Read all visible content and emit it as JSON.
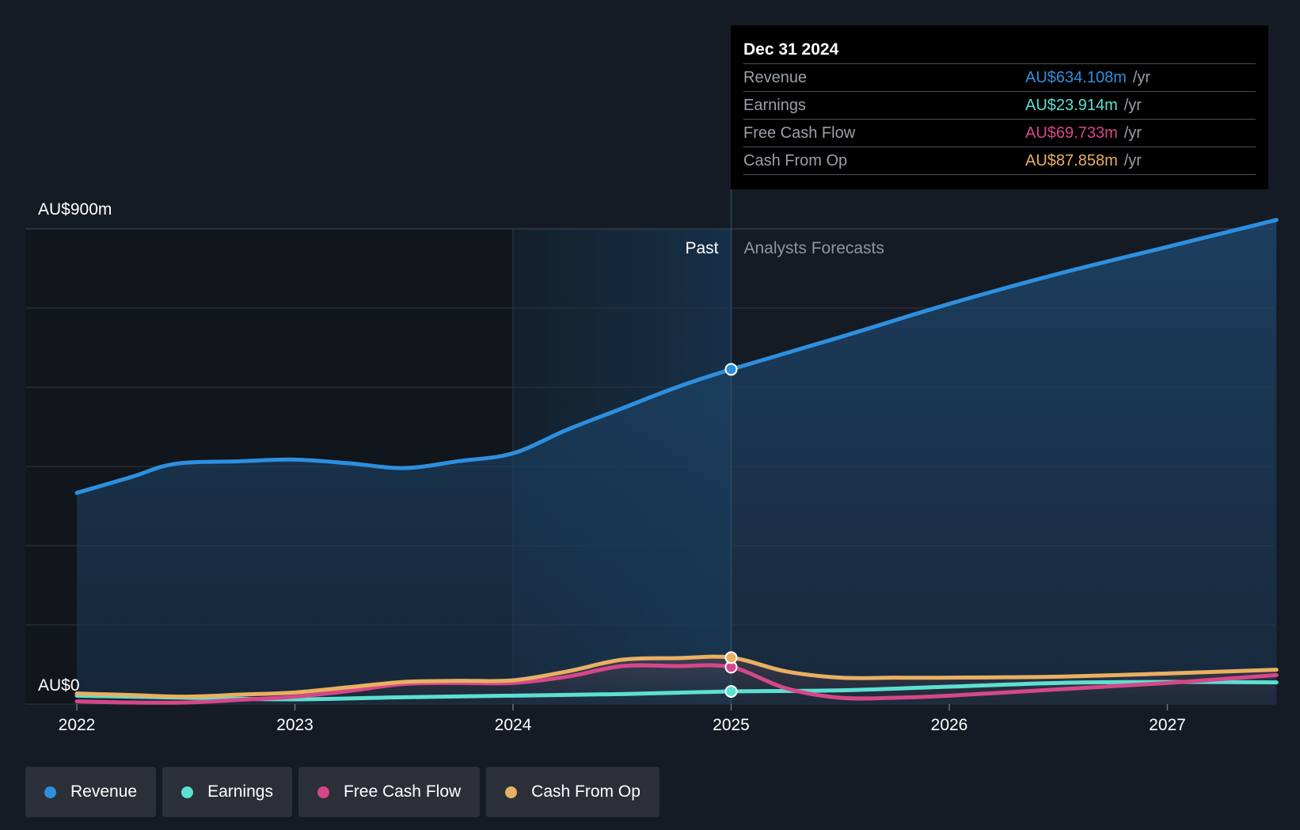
{
  "tooltip": {
    "date": "Dec 31 2024",
    "rows": [
      {
        "label": "Revenue",
        "value": "AU$634.108m",
        "unit": "/yr",
        "color": "#2d8fe0"
      },
      {
        "label": "Earnings",
        "value": "AU$23.914m",
        "unit": "/yr",
        "color": "#5ce0d0"
      },
      {
        "label": "Free Cash Flow",
        "value": "AU$69.733m",
        "unit": "/yr",
        "color": "#d6478a"
      },
      {
        "label": "Cash From Op",
        "value": "AU$87.858m",
        "unit": "/yr",
        "color": "#e8b062"
      }
    ]
  },
  "legend": [
    {
      "label": "Revenue",
      "color": "#2d8fe0"
    },
    {
      "label": "Earnings",
      "color": "#5ce0d0"
    },
    {
      "label": "Free Cash Flow",
      "color": "#d6478a"
    },
    {
      "label": "Cash From Op",
      "color": "#e8b062"
    }
  ],
  "chart_data": {
    "type": "line",
    "title": "",
    "y_unit": "AU$ millions",
    "ylim": [
      0,
      900
    ],
    "ytick_labels": [
      "AU$0",
      "AU$900m"
    ],
    "x_ticks": [
      2022,
      2023,
      2024,
      2025,
      2026,
      2027
    ],
    "xlim": [
      2021.77,
      2027.5
    ],
    "divider_x": 2025.0,
    "past_label": "Past",
    "forecast_label": "Analysts Forecasts",
    "highlight_band": [
      2024.0,
      2025.0
    ],
    "series": [
      {
        "name": "Revenue",
        "color": "#2d8fe0",
        "filled": true,
        "x": [
          2022.0,
          2022.25,
          2022.45,
          2022.75,
          2023.0,
          2023.25,
          2023.5,
          2023.75,
          2024.0,
          2024.25,
          2024.5,
          2024.75,
          2025.0,
          2025.5,
          2026.0,
          2026.5,
          2027.0,
          2027.5
        ],
        "y": [
          400,
          430,
          455,
          460,
          463,
          456,
          447,
          460,
          475,
          520,
          560,
          600,
          634,
          695,
          758,
          815,
          866,
          917
        ]
      },
      {
        "name": "Earnings",
        "color": "#5ce0d0",
        "filled": false,
        "x": [
          2022.0,
          2022.5,
          2023.0,
          2023.5,
          2024.0,
          2024.5,
          2025.0,
          2025.5,
          2026.0,
          2026.5,
          2027.0,
          2027.5
        ],
        "y": [
          16,
          12,
          9,
          13,
          16,
          19,
          24,
          26,
          33,
          40,
          42,
          41
        ]
      },
      {
        "name": "Free Cash Flow",
        "color": "#d6478a",
        "filled": false,
        "x": [
          2022.0,
          2022.25,
          2022.5,
          2022.75,
          2023.0,
          2023.25,
          2023.5,
          2023.75,
          2024.0,
          2024.25,
          2024.5,
          2024.75,
          2025.0,
          2025.25,
          2025.5,
          2025.75,
          2026.0,
          2026.5,
          2027.0,
          2027.5
        ],
        "y": [
          5,
          3,
          3,
          8,
          14,
          25,
          38,
          40,
          40,
          52,
          72,
          72,
          70,
          30,
          12,
          12,
          16,
          28,
          40,
          55
        ]
      },
      {
        "name": "Cash From Op",
        "color": "#e8b062",
        "filled": false,
        "x": [
          2022.0,
          2022.25,
          2022.5,
          2022.75,
          2023.0,
          2023.25,
          2023.5,
          2023.75,
          2024.0,
          2024.25,
          2024.5,
          2024.75,
          2025.0,
          2025.25,
          2025.5,
          2025.75,
          2026.0,
          2026.5,
          2027.0,
          2027.5
        ],
        "y": [
          20,
          17,
          14,
          18,
          22,
          32,
          42,
          44,
          45,
          62,
          84,
          87,
          88,
          62,
          50,
          50,
          50,
          52,
          58,
          65
        ]
      }
    ]
  }
}
